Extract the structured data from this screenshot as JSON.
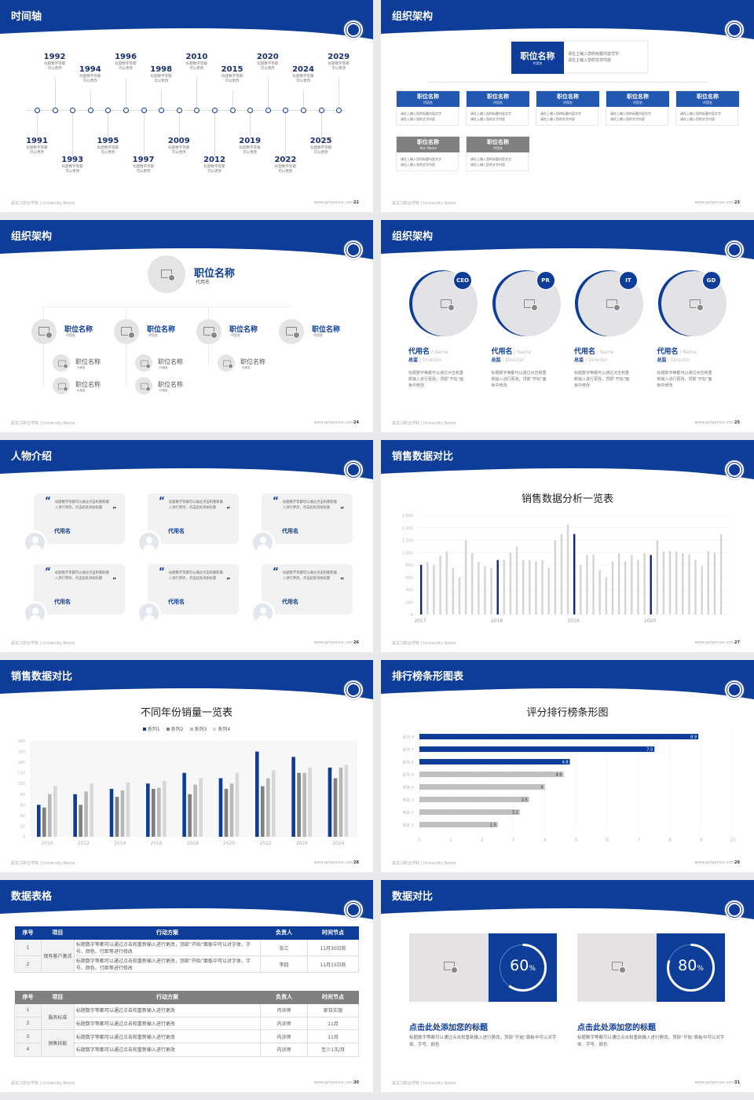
{
  "colors": {
    "primary": "#0d3d99",
    "gray": "#c8c8c8",
    "darkgray": "#808080",
    "light": "#f2f2f2"
  },
  "footer": {
    "left": "黑龙江职业学院 | University Name",
    "site": "www.pptgenius.com"
  },
  "slides": [
    {
      "title": "时间轴",
      "page": "22",
      "timeline": [
        {
          "year": "1991",
          "desc": "标题数字等都\n可以更改"
        },
        {
          "year": "1992",
          "desc": "标题数字等都\n可以更改"
        },
        {
          "year": "1993",
          "desc": "标题数字等都\n可以更改"
        },
        {
          "year": "1994",
          "desc": "标题数字等都\n可以更改"
        },
        {
          "year": "1995",
          "desc": "标题数字等都\n可以更改"
        },
        {
          "year": "1996",
          "desc": "标题数字等都\n可以更改"
        },
        {
          "year": "1997",
          "desc": "标题数字等都\n可以更改"
        },
        {
          "year": "1998",
          "desc": "标题数字等都\n可以更改"
        },
        {
          "year": "2009",
          "desc": "标题数字等都\n可以更改"
        },
        {
          "year": "2010",
          "desc": "标题数字等都\n可以更改"
        },
        {
          "year": "2012",
          "desc": "标题数字等都\n可以更改"
        },
        {
          "year": "2015",
          "desc": "标题数字等都\n可以更改"
        },
        {
          "year": "2019",
          "desc": "标题数字等都\n可以更改"
        },
        {
          "year": "2020",
          "desc": "标题数字等都\n可以更改"
        },
        {
          "year": "2022",
          "desc": "标题数字等都\n可以更改"
        },
        {
          "year": "2024",
          "desc": "标题数字等都\n可以更改"
        },
        {
          "year": "2025",
          "desc": "标题数字等都\n可以更改"
        },
        {
          "year": "2029",
          "desc": "标题数字等都\n可以更改"
        }
      ]
    },
    {
      "title": "组织架构",
      "page": "23",
      "top": {
        "title": "职位名称",
        "sub": "代用名",
        "desc": "请在上输入您的标题内容文字\n请在上输入您的文字内容"
      },
      "boxes": [
        {
          "title": "职位名称",
          "sub": "代用名",
          "desc": "请在上输入您的标题内容文字\n请在上输入您的文字内容",
          "tone": "blue"
        },
        {
          "title": "职位名称",
          "sub": "代用名",
          "desc": "请在上输入您的标题内容文字\n请在上输入您的文字内容",
          "tone": "blue"
        },
        {
          "title": "职位名称",
          "sub": "代用名",
          "desc": "请在上输入您的标题内容文字\n请在上输入您的文字内容",
          "tone": "blue"
        },
        {
          "title": "职位名称",
          "sub": "代用名",
          "desc": "请在上输入您的标题内容文字\n请在上输入您的文字内容",
          "tone": "blue"
        },
        {
          "title": "职位名称",
          "sub": "代用名",
          "desc": "请在上输入您的标题内容文字\n请在上输入您的文字内容",
          "tone": "blue"
        },
        {
          "title": "职位名称",
          "sub": "Your Name",
          "desc": "请在上输入您的标题内容文字\n请在上输入您的文字内容",
          "tone": "gray"
        },
        {
          "title": "职位名称",
          "sub": "代用名",
          "desc": "请在上输入您的标题内容文字\n请在上输入您的文字内容",
          "tone": "gray"
        }
      ]
    },
    {
      "title": "组织架构",
      "page": "24",
      "top": {
        "title": "职位名称",
        "sub": "代用名"
      },
      "mid": [
        {
          "title": "职位名称",
          "sub": "代用名"
        },
        {
          "title": "职位名称",
          "sub": "代用名"
        },
        {
          "title": "职位名称",
          "sub": "代用名"
        },
        {
          "title": "职位名称",
          "sub": "代用名"
        }
      ],
      "small": [
        {
          "title": "职位名称",
          "sub": "代用名"
        },
        {
          "title": "职位名称",
          "sub": "代用名"
        },
        {
          "title": "职位名称",
          "sub": "代用名"
        },
        {
          "title": "职位名称",
          "sub": "代用名"
        },
        {
          "title": "职位名称",
          "sub": "代用名"
        }
      ]
    },
    {
      "title": "组织架构",
      "page": "25",
      "people": [
        {
          "badge": "CEO",
          "name": "代用名",
          "name_en": "/ Name",
          "role": "总监",
          "role_en": "/ Director",
          "desc": "标题数字等都可以通过点击和重新输入进行更改，顶部“开始”面板中修改"
        },
        {
          "badge": "PR",
          "name": "代用名",
          "name_en": "/ Name",
          "role": "总监",
          "role_en": "/ Director",
          "desc": "标题数字等都可以通过点击和重新输入进行更改，顶部“开始”面板中修改"
        },
        {
          "badge": "IT",
          "name": "代用名",
          "name_en": "/ Name",
          "role": "总监",
          "role_en": "/ Director",
          "desc": "标题数字等都可以通过点击和重新输入进行更改，顶部“开始”面板中修改"
        },
        {
          "badge": "GD",
          "name": "代用名",
          "name_en": "/ Name",
          "role": "总监",
          "role_en": "/ Director",
          "desc": "标题数字等都可以通过点击和重新输入进行更改，顶部“开始”面板中修改"
        }
      ]
    },
    {
      "title": "人物介绍",
      "page": "26",
      "cards": [
        {
          "quote": "标题数字等都可以通过点击和重新输入进行更改，点击此处添加标题",
          "name": "代用名"
        },
        {
          "quote": "标题数字等都可以通过点击和重新输入进行更改，点击此处添加标题",
          "name": "代用名"
        },
        {
          "quote": "标题数字等都可以通过点击和重新输入进行更改，点击此处添加标题",
          "name": "代用名"
        },
        {
          "quote": "标题数字等都可以通过点击和重新输入进行更改，点击此处添加标题",
          "name": "代用名"
        },
        {
          "quote": "标题数字等都可以通过点击和重新输入进行更改，点击此处添加标题",
          "name": "代用名"
        },
        {
          "quote": "标题数字等都可以通过点击和重新输入进行更改，点击此处添加标题",
          "name": "代用名"
        }
      ]
    },
    {
      "title": "销售数据对比",
      "page": "27"
    },
    {
      "title": "销售数据对比",
      "page": "28"
    },
    {
      "title": "排行榜条形图表",
      "page": "29"
    },
    {
      "title": "数据表格",
      "page": "30",
      "table1": {
        "headers": [
          "序号",
          "项目",
          "行动方案",
          "负责人",
          "时间节点"
        ],
        "group": "保有客户激活",
        "rows": [
          [
            "1",
            "标题数字等都可以通过点击和重新输入进行更改，顶部“开始”面板中可以对字体、字号、颜色、行距等进行修改",
            "张三",
            "11月30日前"
          ],
          [
            "2",
            "标题数字等都可以通过点击和重新输入进行更改，顶部“开始”面板中可以对字体、字号、颜色、行距等进行修改",
            "李四",
            "11月15日前"
          ]
        ]
      },
      "table2": {
        "headers": [
          "序号",
          "项目",
          "行动方案",
          "负责人",
          "时间节点"
        ],
        "groups": [
          "服务标准",
          "销售技能"
        ],
        "rows": [
          [
            "1",
            "标题数字等都可以通过点击和重新输入进行更改",
            "内训师",
            "即日实施"
          ],
          [
            "2",
            "标题数字等都可以通过点击和重新输入进行更改",
            "内训师",
            "11月"
          ],
          [
            "3",
            "标题数字等都可以通过点击和重新输入进行更改",
            "内训师",
            "11月"
          ],
          [
            "4",
            "标题数字等都可以通过点击和重新输入进行更改",
            "内训师",
            "至少1次/月"
          ]
        ]
      }
    },
    {
      "title": "数据对比",
      "page": "31",
      "panels": [
        {
          "percent": 60,
          "label": "60",
          "unit": "%",
          "heading": "点击此处添加您的标题",
          "desc": "标题数字等都可以通过点击和重新输入进行更改，顶部“开始”面板中可以对字体、字号、颜色"
        },
        {
          "percent": 80,
          "label": "80",
          "unit": "%",
          "heading": "点击此处添加您的标题",
          "desc": "标题数字等都可以通过点击和重新输入进行更改，顶部“开始”面板中可以对字体、字号、颜色"
        }
      ]
    }
  ],
  "chart_data": [
    {
      "type": "bar",
      "title": "销售数据分析一览表",
      "xlabel": "",
      "ylabel": "",
      "ylim": [
        0,
        1600
      ],
      "yticks": [
        "0",
        "200",
        "400",
        "600",
        "800",
        "1,000",
        "1,200",
        "1,400",
        "1,600"
      ],
      "x_tick_labels": [
        "2017",
        "2018",
        "2019",
        "2020"
      ],
      "grid": true,
      "values": [
        800,
        850,
        800,
        950,
        1020,
        750,
        600,
        1200,
        990,
        850,
        780,
        750,
        880,
        880,
        1000,
        1100,
        880,
        880,
        860,
        880,
        750,
        1200,
        1300,
        1450,
        1300,
        800,
        960,
        970,
        720,
        600,
        860,
        990,
        860,
        960,
        880,
        990,
        960,
        1200,
        1020,
        1030,
        1020,
        990,
        970,
        880,
        780,
        1020,
        1000,
        1300
      ],
      "highlight_indices": [
        0,
        12,
        24,
        36
      ],
      "highlight_color": "#0d2a7a",
      "bar_color": "#d4d4d4"
    },
    {
      "type": "bar",
      "title": "不同年份销量一览表",
      "legend": "top",
      "ylim": [
        0,
        180
      ],
      "yticks": [
        "0",
        "20",
        "40",
        "60",
        "80",
        "100",
        "120",
        "140",
        "160",
        "180"
      ],
      "categories": [
        "2010",
        "2012",
        "2014",
        "2016",
        "2018",
        "2020",
        "2022",
        "2024",
        "2026"
      ],
      "series": [
        {
          "name": "系列1",
          "color": "#0d3d99",
          "values": [
            60,
            80,
            90,
            100,
            120,
            110,
            160,
            150,
            130
          ]
        },
        {
          "name": "系列2",
          "color": "#808080",
          "values": [
            55,
            60,
            75,
            90,
            80,
            90,
            95,
            120,
            110
          ]
        },
        {
          "name": "系列3",
          "color": "#b8b8b8",
          "values": [
            80,
            85,
            87,
            92,
            98,
            100,
            110,
            120,
            130
          ]
        },
        {
          "name": "系列4",
          "color": "#d8d8d8",
          "values": [
            95,
            100,
            102,
            105,
            110,
            120,
            125,
            130,
            135
          ]
        }
      ]
    },
    {
      "type": "bar",
      "orientation": "horizontal",
      "title": "评分排行榜条形图",
      "xlim": [
        0,
        10
      ],
      "xticks": [
        "0",
        "1",
        "2",
        "3",
        "4",
        "5",
        "6",
        "7",
        "8",
        "9",
        "10"
      ],
      "grid": true,
      "categories": [
        "类别 1",
        "类别 2",
        "类别 3",
        "类别 4",
        "系列 5",
        "系列 6",
        "系列 7",
        "系列 8"
      ],
      "values": [
        2.5,
        3.2,
        3.5,
        4,
        4.6,
        4.8,
        7.5,
        8.9
      ],
      "colors": [
        "#c0c0c0",
        "#c0c0c0",
        "#c0c0c0",
        "#c0c0c0",
        "#c0c0c0",
        "#0d3d99",
        "#0d3d99",
        "#0d3d99"
      ]
    }
  ]
}
